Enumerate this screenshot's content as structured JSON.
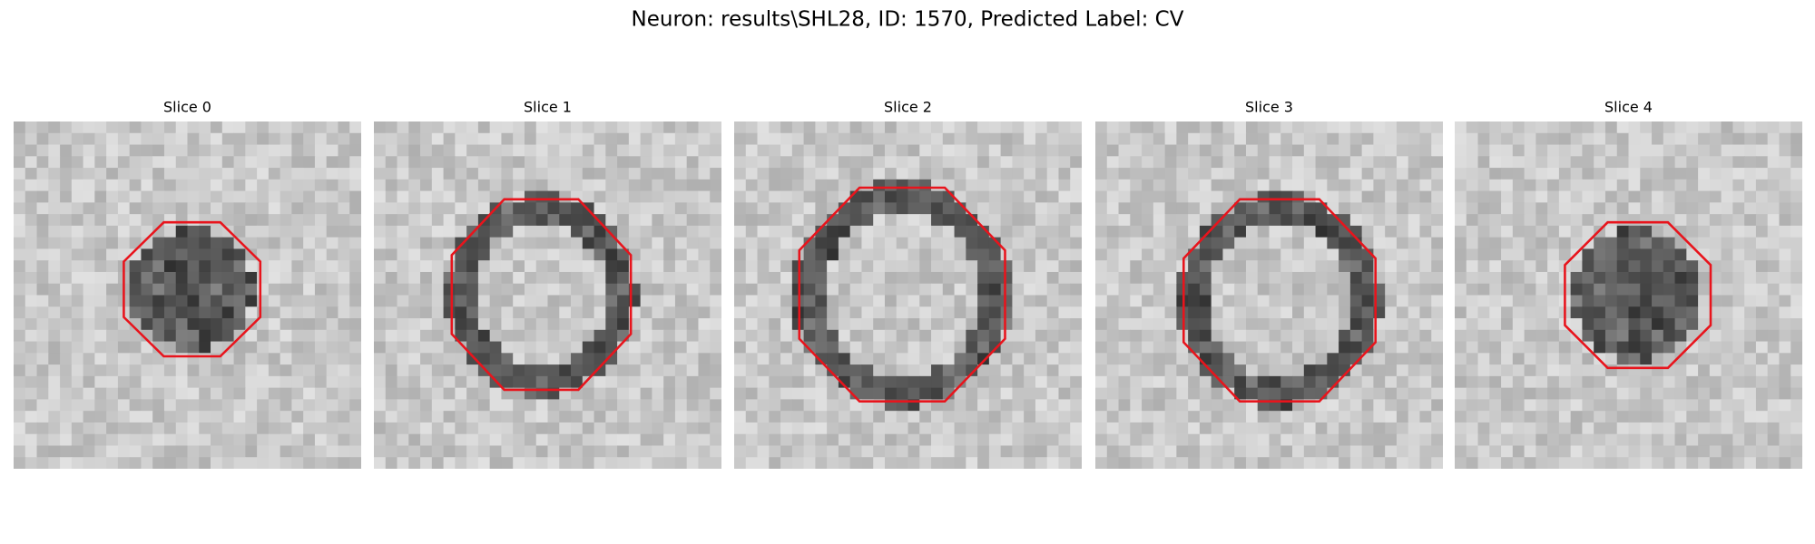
{
  "title": "Neuron: results\\SHL28, ID: 1570, Predicted Label: CV",
  "panels": [
    {
      "title": "Slice 0"
    },
    {
      "title": "Slice 1"
    },
    {
      "title": "Slice 2"
    },
    {
      "title": "Slice 3"
    },
    {
      "title": "Slice 4"
    }
  ]
}
